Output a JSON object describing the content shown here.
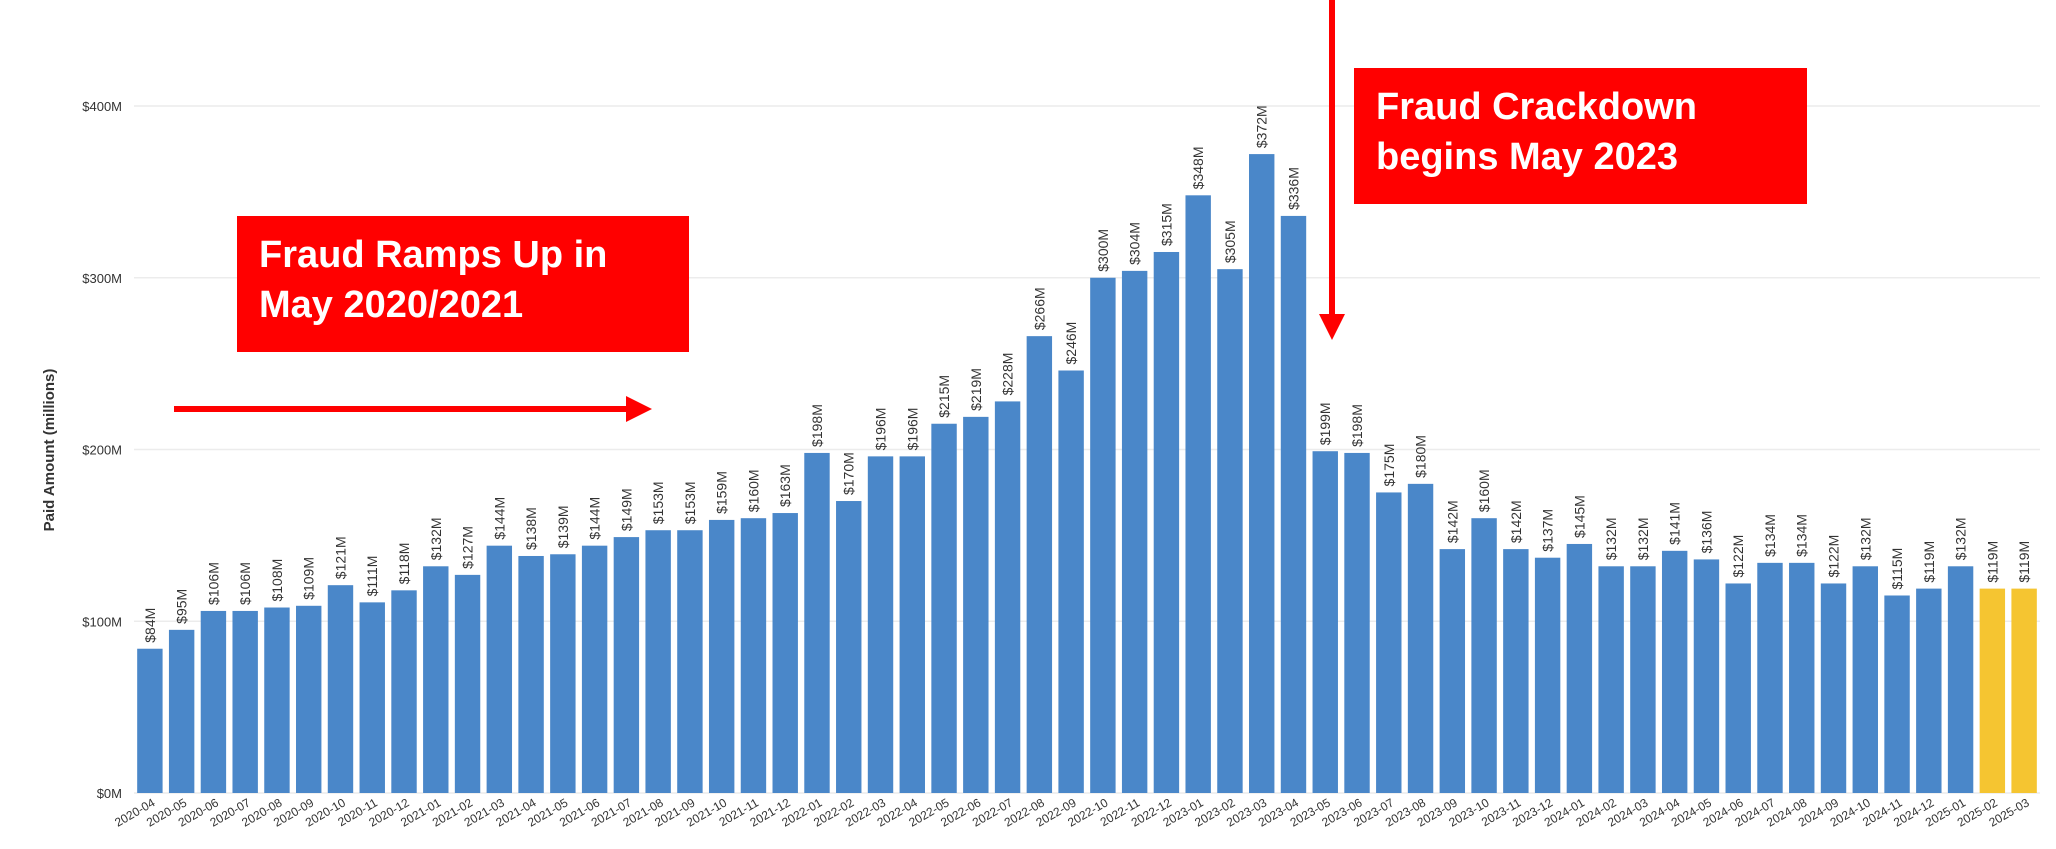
{
  "chart_data": {
    "type": "bar",
    "y_label": "Paid Amount (millions)",
    "categories": [
      "2020-04",
      "2020-05",
      "2020-06",
      "2020-07",
      "2020-08",
      "2020-09",
      "2020-10",
      "2020-11",
      "2020-12",
      "2021-01",
      "2021-02",
      "2021-03",
      "2021-04",
      "2021-05",
      "2021-06",
      "2021-07",
      "2021-08",
      "2021-09",
      "2021-10",
      "2021-11",
      "2021-12",
      "2022-01",
      "2022-02",
      "2022-03",
      "2022-04",
      "2022-05",
      "2022-06",
      "2022-07",
      "2022-08",
      "2022-09",
      "2022-10",
      "2022-11",
      "2022-12",
      "2023-01",
      "2023-02",
      "2023-03",
      "2023-04",
      "2023-05",
      "2023-06",
      "2023-07",
      "2023-08",
      "2023-09",
      "2023-10",
      "2023-11",
      "2023-12",
      "2024-01",
      "2024-02",
      "2024-03",
      "2024-04",
      "2024-05",
      "2024-06",
      "2024-07",
      "2024-08",
      "2024-09",
      "2024-10",
      "2024-11",
      "2024-12",
      "2025-01",
      "2025-02",
      "2025-03"
    ],
    "values": [
      84,
      95,
      106,
      106,
      108,
      109,
      121,
      111,
      118,
      132,
      127,
      144,
      138,
      139,
      144,
      149,
      153,
      153,
      159,
      160,
      163,
      198,
      170,
      196,
      196,
      215,
      219,
      228,
      266,
      246,
      300,
      304,
      315,
      348,
      305,
      372,
      336,
      199,
      198,
      175,
      180,
      142,
      160,
      142,
      137,
      145,
      132,
      132,
      141,
      136,
      122,
      134,
      134,
      122,
      132,
      115,
      119,
      132,
      119,
      119
    ],
    "value_labels": [
      "$84M",
      "$95M",
      "$106M",
      "$106M",
      "$108M",
      "$109M",
      "$121M",
      "$111M",
      "$118M",
      "$132M",
      "$127M",
      "$144M",
      "$138M",
      "$139M",
      "$144M",
      "$149M",
      "$153M",
      "$153M",
      "$159M",
      "$160M",
      "$163M",
      "$198M",
      "$170M",
      "$196M",
      "$196M",
      "$215M",
      "$219M",
      "$228M",
      "$266M",
      "$246M",
      "$300M",
      "$304M",
      "$315M",
      "$348M",
      "$305M",
      "$372M",
      "$336M",
      "$199M",
      "$198M",
      "$175M",
      "$180M",
      "$142M",
      "$160M",
      "$142M",
      "$137M",
      "$145M",
      "$132M",
      "$132M",
      "$141M",
      "$136M",
      "$122M",
      "$134M",
      "$134M",
      "$122M",
      "$132M",
      "$115M",
      "$119M",
      "$132M",
      "$119M",
      "$119M"
    ],
    "colors": [
      "#4a87c9",
      "#4a87c9",
      "#4a87c9",
      "#4a87c9",
      "#4a87c9",
      "#4a87c9",
      "#4a87c9",
      "#4a87c9",
      "#4a87c9",
      "#4a87c9",
      "#4a87c9",
      "#4a87c9",
      "#4a87c9",
      "#4a87c9",
      "#4a87c9",
      "#4a87c9",
      "#4a87c9",
      "#4a87c9",
      "#4a87c9",
      "#4a87c9",
      "#4a87c9",
      "#4a87c9",
      "#4a87c9",
      "#4a87c9",
      "#4a87c9",
      "#4a87c9",
      "#4a87c9",
      "#4a87c9",
      "#4a87c9",
      "#4a87c9",
      "#4a87c9",
      "#4a87c9",
      "#4a87c9",
      "#4a87c9",
      "#4a87c9",
      "#4a87c9",
      "#4a87c9",
      "#4a87c9",
      "#4a87c9",
      "#4a87c9",
      "#4a87c9",
      "#4a87c9",
      "#4a87c9",
      "#4a87c9",
      "#4a87c9",
      "#4a87c9",
      "#4a87c9",
      "#4a87c9",
      "#4a87c9",
      "#4a87c9",
      "#4a87c9",
      "#4a87c9",
      "#4a87c9",
      "#4a87c9",
      "#4a87c9",
      "#4a87c9",
      "#4a87c9",
      "#4a87c9",
      "#f5c531",
      "#f5c531"
    ],
    "ylim": [
      0,
      400
    ],
    "yticks": [
      {
        "value": 0,
        "label": "$0M"
      },
      {
        "value": 100,
        "label": "$100M"
      },
      {
        "value": 200,
        "label": "$200M"
      },
      {
        "value": 300,
        "label": "$300M"
      },
      {
        "value": 400,
        "label": "$400M"
      }
    ],
    "grid": true,
    "annotations": [
      "Fraud Ramps Up in May 2020/2021",
      "Fraud Crackdown begins May 2023"
    ]
  }
}
